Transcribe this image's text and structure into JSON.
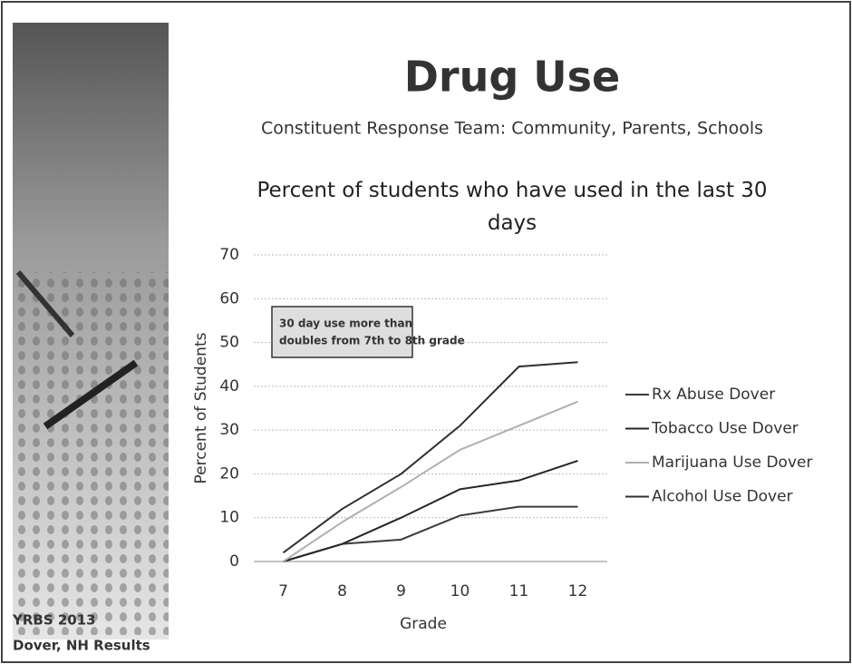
{
  "slide": {
    "title": "Drug Use",
    "subtitle": "Constituent Response Team: Community, Parents, Schools",
    "footer": [
      "YRBS 2013",
      "Dover, NH Results"
    ]
  },
  "chart_data": {
    "type": "line",
    "title": "Percent of students who have used in the last 30 days",
    "x_label": "Grade",
    "y_label": "Percent of Students",
    "categories": [
      "7",
      "8",
      "9",
      "10",
      "11",
      "12"
    ],
    "series": [
      {
        "name": "Rx Abuse Dover",
        "color": "#3c3c3c",
        "values": [
          0,
          4,
          5,
          10.5,
          12.5,
          12.5
        ]
      },
      {
        "name": "Tobacco Use Dover",
        "color": "#262626",
        "values": [
          0,
          4,
          10,
          16.5,
          18.5,
          23
        ]
      },
      {
        "name": "Marijuana Use Dover",
        "color": "#b0b0b0",
        "values": [
          0,
          9,
          17,
          25.5,
          31,
          36.5
        ]
      },
      {
        "name": "Alcohol Use Dover",
        "color": "#303030",
        "values": [
          2,
          12,
          20,
          31,
          44.5,
          45.5
        ]
      }
    ],
    "ylim": [
      0,
      70
    ],
    "yticks": [
      0,
      10,
      20,
      30,
      40,
      50,
      60,
      70
    ],
    "grid": true,
    "legend": "right",
    "annotation": [
      "30 day use more than",
      "doubles from 7th to 8th grade"
    ]
  }
}
